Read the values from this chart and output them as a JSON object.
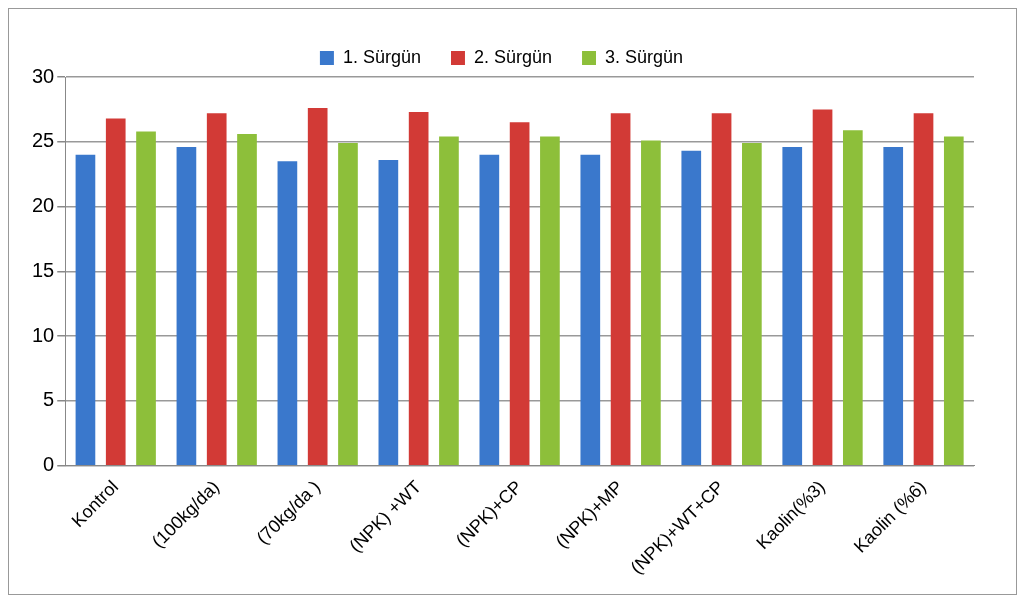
{
  "chart_data": {
    "type": "bar",
    "categories": [
      "Kontrol",
      "(100kg/da)",
      "(70kg/da )",
      "(NPK) +WT",
      "(NPK)+CP",
      "(NPK)+MP",
      "(NPK)+WT+CP",
      "Kaolin(%3)",
      "Kaolin (%6)"
    ],
    "series": [
      {
        "name": "1. Sürgün",
        "color": "#3a78cc",
        "values": [
          24.0,
          24.6,
          23.5,
          23.6,
          24.0,
          24.0,
          24.3,
          24.6,
          24.6
        ]
      },
      {
        "name": "2. Sürgün",
        "color": "#d23a36",
        "values": [
          26.8,
          27.2,
          27.6,
          27.3,
          26.5,
          27.2,
          27.2,
          27.5,
          27.2
        ]
      },
      {
        "name": "3. Sürgün",
        "color": "#8dbf3a",
        "values": [
          25.8,
          25.6,
          24.9,
          25.4,
          25.4,
          25.1,
          24.9,
          25.9,
          25.4
        ]
      }
    ],
    "ylim": [
      0,
      30
    ],
    "yticks": [
      0,
      5,
      10,
      15,
      20,
      25,
      30
    ],
    "grid": "y",
    "legend": "top"
  }
}
